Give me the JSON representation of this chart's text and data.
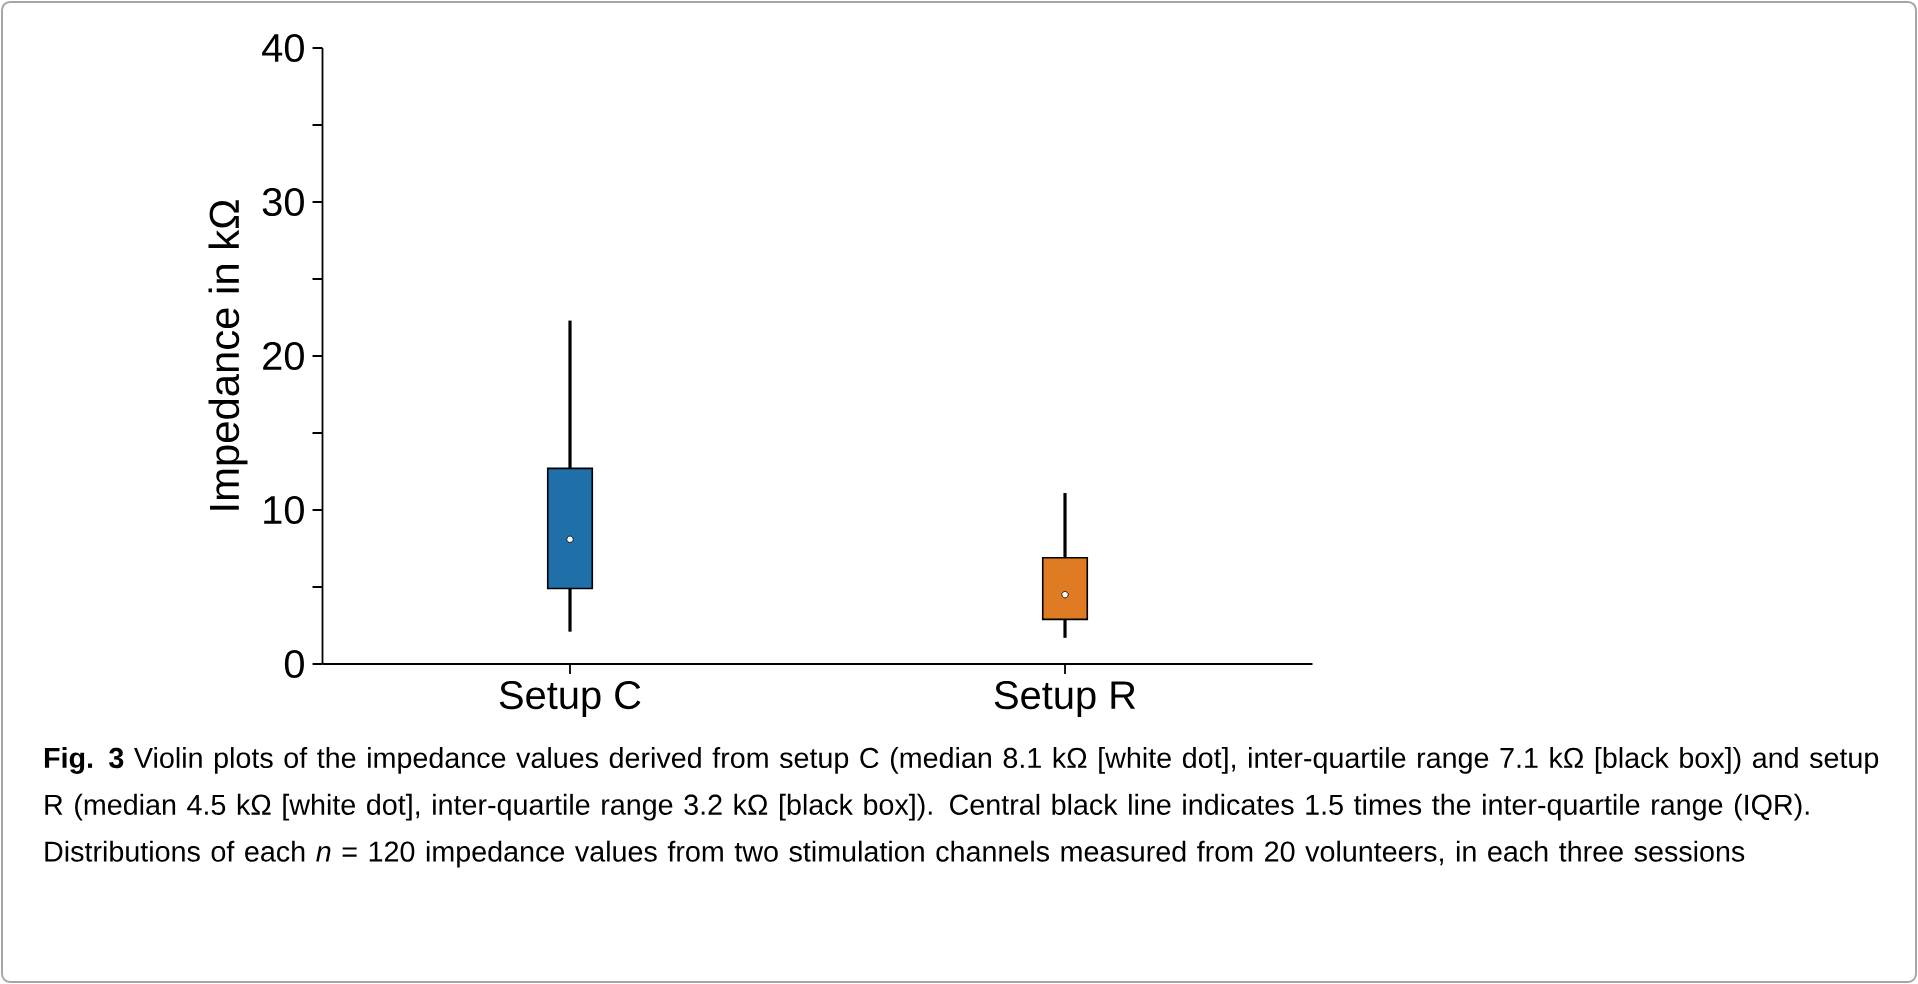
{
  "chart_data": {
    "type": "box",
    "ylabel": "Impedance in kΩ",
    "categories": [
      "Setup C",
      "Setup R"
    ],
    "colors": [
      "#1f6fa8",
      "#df7b23"
    ],
    "boxes": [
      {
        "low": 2.1,
        "q1": 4.9,
        "median": 8.1,
        "q3": 12.7,
        "high": 22.3
      },
      {
        "low": 1.7,
        "q1": 2.9,
        "median": 4.5,
        "q3": 6.9,
        "high": 11.1
      }
    ],
    "ylim": [
      0,
      40
    ],
    "yticks": [
      0,
      {
        "value": 5,
        "label": null
      },
      10,
      {
        "value": 15,
        "label": null
      },
      20,
      {
        "value": 25,
        "label": null
      },
      30,
      {
        "value": 35,
        "label": null
      },
      40
    ],
    "grid": false,
    "annotations": [
      "**Fig. 3**  Violin plots of the impedance values derived from setup C (median 8.1 kΩ [white dot], inter-quartile range 7.1 kΩ [black box]) and setup R (median 4.5 kΩ [white dot], inter-quartile range 3.2 kΩ [black box]). Central black line indicates 1.5 times the inter-quartile range (IQR). Distributions of each *n* = 120 impedance values from two stimulation channels measured from 20 volunteers, in each three sessions"
    ]
  }
}
